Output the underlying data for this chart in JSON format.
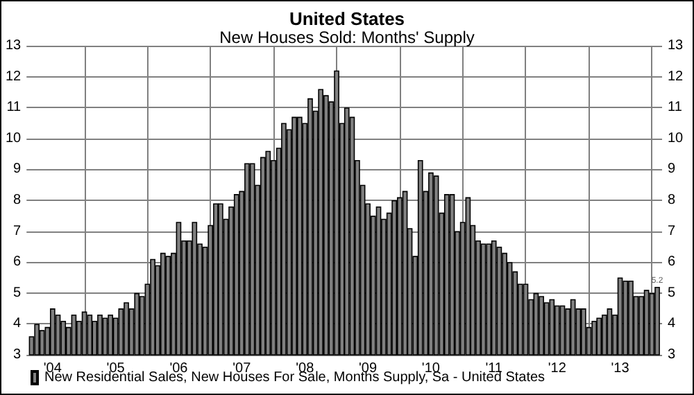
{
  "chart_data": {
    "type": "bar",
    "title": "United States",
    "subtitle": "New Houses Sold: Months' Supply",
    "x": [
      "2004-03",
      "2004-04",
      "2004-05",
      "2004-06",
      "2004-07",
      "2004-08",
      "2004-09",
      "2004-10",
      "2004-11",
      "2004-12",
      "2005-01",
      "2005-02",
      "2005-03",
      "2005-04",
      "2005-05",
      "2005-06",
      "2005-07",
      "2005-08",
      "2005-09",
      "2005-10",
      "2005-11",
      "2005-12",
      "2006-01",
      "2006-02",
      "2006-03",
      "2006-04",
      "2006-05",
      "2006-06",
      "2006-07",
      "2006-08",
      "2006-09",
      "2006-10",
      "2006-11",
      "2006-12",
      "2007-01",
      "2007-02",
      "2007-03",
      "2007-04",
      "2007-05",
      "2007-06",
      "2007-07",
      "2007-08",
      "2007-09",
      "2007-10",
      "2007-11",
      "2007-12",
      "2008-01",
      "2008-02",
      "2008-03",
      "2008-04",
      "2008-05",
      "2008-06",
      "2008-07",
      "2008-08",
      "2008-09",
      "2008-10",
      "2008-11",
      "2008-12",
      "2009-01",
      "2009-02",
      "2009-03",
      "2009-04",
      "2009-05",
      "2009-06",
      "2009-07",
      "2009-08",
      "2009-09",
      "2009-10",
      "2009-11",
      "2009-12",
      "2010-01",
      "2010-02",
      "2010-03",
      "2010-04",
      "2010-05",
      "2010-06",
      "2010-07",
      "2010-08",
      "2010-09",
      "2010-10",
      "2010-11",
      "2010-12",
      "2011-01",
      "2011-02",
      "2011-03",
      "2011-04",
      "2011-05",
      "2011-06",
      "2011-07",
      "2011-08",
      "2011-09",
      "2011-10",
      "2011-11",
      "2011-12",
      "2012-01",
      "2012-02",
      "2012-03",
      "2012-04",
      "2012-05",
      "2012-06",
      "2012-07",
      "2012-08",
      "2012-09",
      "2012-10",
      "2012-11",
      "2012-12",
      "2013-01",
      "2013-02",
      "2013-03",
      "2013-04",
      "2013-05",
      "2013-06",
      "2013-07",
      "2013-08",
      "2013-09",
      "2013-10",
      "2013-11",
      "2013-12",
      "2014-01",
      "2014-02"
    ],
    "series": [
      {
        "name": "New Residential Sales, New Houses For Sale, Months Supply, Sa - United States",
        "color": "#808080",
        "values": [
          3.6,
          4.0,
          3.8,
          3.9,
          4.5,
          4.3,
          4.1,
          3.9,
          4.3,
          4.1,
          4.4,
          4.3,
          4.1,
          4.3,
          4.2,
          4.3,
          4.2,
          4.5,
          4.7,
          4.5,
          5.0,
          4.9,
          5.3,
          6.1,
          5.9,
          6.3,
          6.2,
          6.3,
          7.3,
          6.7,
          6.7,
          7.3,
          6.6,
          6.5,
          7.2,
          7.9,
          7.9,
          7.4,
          7.8,
          8.2,
          8.3,
          9.2,
          9.2,
          8.5,
          9.4,
          9.6,
          9.3,
          9.7,
          10.5,
          10.3,
          10.7,
          10.7,
          10.5,
          11.3,
          10.9,
          11.6,
          11.4,
          11.2,
          12.2,
          10.5,
          11.0,
          10.7,
          9.3,
          8.5,
          7.9,
          7.5,
          7.8,
          7.4,
          7.6,
          8.0,
          8.1,
          8.3,
          7.1,
          6.2,
          9.3,
          8.3,
          8.9,
          8.8,
          7.6,
          8.2,
          8.2,
          7.0,
          7.3,
          8.1,
          7.2,
          6.7,
          6.6,
          6.6,
          6.7,
          6.5,
          6.3,
          6.0,
          5.7,
          5.3,
          5.3,
          4.8,
          5.0,
          4.9,
          4.7,
          4.8,
          4.6,
          4.6,
          4.5,
          4.8,
          4.5,
          4.5,
          3.9,
          4.1,
          4.2,
          4.3,
          4.5,
          4.3,
          5.5,
          5.4,
          5.4,
          4.9,
          4.9,
          5.1,
          5.0,
          5.2
        ],
        "value_labels": [
          null,
          null,
          null,
          null,
          null,
          null,
          null,
          null,
          null,
          null,
          null,
          null,
          null,
          null,
          null,
          null,
          null,
          null,
          null,
          null,
          null,
          null,
          null,
          null,
          null,
          null,
          null,
          null,
          null,
          null,
          null,
          null,
          null,
          null,
          null,
          null,
          null,
          null,
          null,
          null,
          null,
          null,
          null,
          null,
          null,
          null,
          null,
          null,
          null,
          null,
          null,
          null,
          null,
          null,
          null,
          null,
          null,
          null,
          null,
          null,
          null,
          null,
          null,
          null,
          null,
          null,
          null,
          null,
          null,
          null,
          null,
          null,
          null,
          null,
          null,
          null,
          null,
          null,
          null,
          null,
          null,
          null,
          null,
          null,
          null,
          null,
          null,
          null,
          null,
          null,
          null,
          null,
          null,
          null,
          null,
          null,
          null,
          null,
          null,
          null,
          null,
          null,
          null,
          null,
          null,
          null,
          null,
          null,
          null,
          null,
          null,
          null,
          null,
          null,
          null,
          null,
          null,
          null,
          null,
          "5.2"
        ]
      }
    ],
    "xlim": [
      "2004-02",
      "2014-03"
    ],
    "xticks": [
      {
        "value": "2004-07",
        "label": "'04"
      },
      {
        "value": "2005-01",
        "label": null
      },
      {
        "value": "2005-07",
        "label": "'05"
      },
      {
        "value": "2006-01",
        "label": null
      },
      {
        "value": "2006-07",
        "label": "'06"
      },
      {
        "value": "2007-01",
        "label": null
      },
      {
        "value": "2007-07",
        "label": "'07"
      },
      {
        "value": "2008-01",
        "label": null
      },
      {
        "value": "2008-07",
        "label": "'08"
      },
      {
        "value": "2009-01",
        "label": null
      },
      {
        "value": "2009-07",
        "label": "'09"
      },
      {
        "value": "2010-01",
        "label": null
      },
      {
        "value": "2010-07",
        "label": "'10"
      },
      {
        "value": "2011-01",
        "label": null
      },
      {
        "value": "2011-07",
        "label": "'11"
      },
      {
        "value": "2012-01",
        "label": null
      },
      {
        "value": "2012-07",
        "label": "'12"
      },
      {
        "value": "2013-01",
        "label": null
      },
      {
        "value": "2013-07",
        "label": "'13"
      },
      {
        "value": "2014-01",
        "label": null
      }
    ],
    "ylim": [
      3,
      13
    ],
    "yticks": [
      3,
      4,
      5,
      6,
      7,
      8,
      9,
      10,
      11,
      12,
      13
    ],
    "y2lim": [
      3,
      13
    ],
    "y2ticks": [
      3,
      4,
      5,
      6,
      7,
      8,
      9,
      10,
      11,
      12,
      13
    ],
    "grid": true,
    "legend": "bottom left"
  }
}
